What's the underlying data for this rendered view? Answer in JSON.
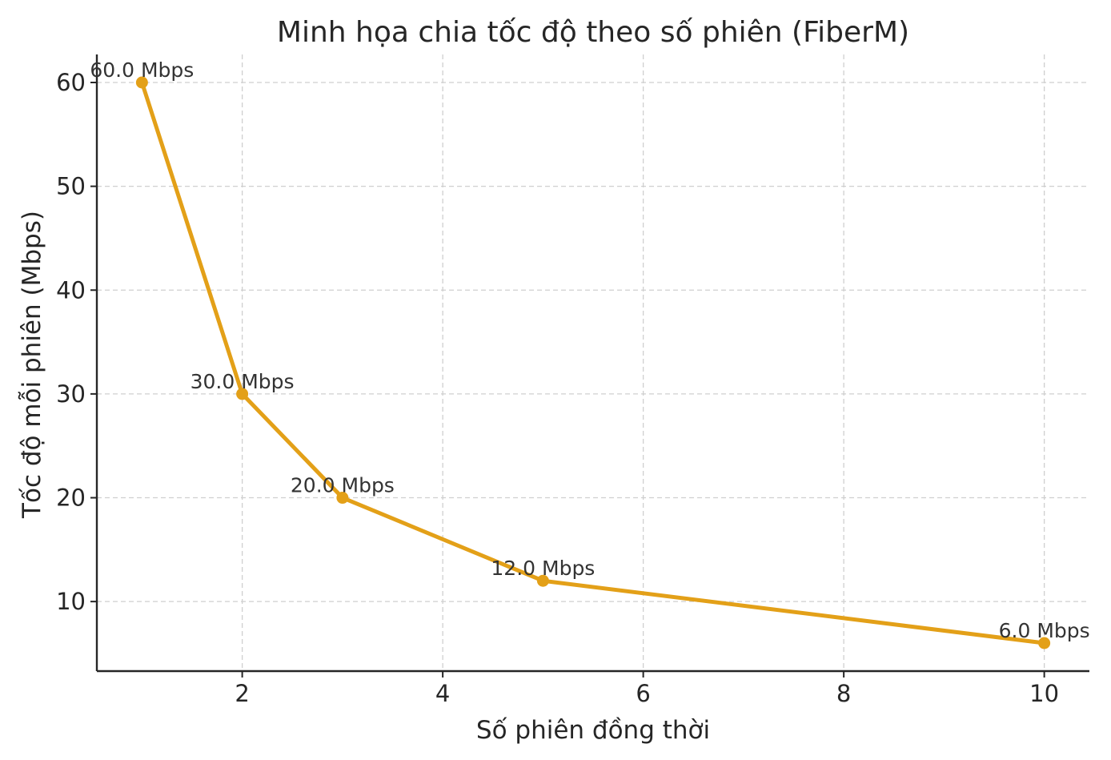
{
  "chart_data": {
    "type": "line",
    "title": "Minh họa chia tốc độ theo số phiên (FiberM)",
    "xlabel": "Số phiên đồng thời",
    "ylabel": "Tốc độ mỗi phiên (Mbps)",
    "x": [
      1,
      2,
      3,
      5,
      10
    ],
    "series": [
      {
        "values": [
          60,
          30,
          20,
          12,
          6
        ],
        "color": "#e3a018"
      }
    ],
    "data_labels": [
      "60.0 Mbps",
      "30.0 Mbps",
      "20.0 Mbps",
      "12.0 Mbps",
      "6.0 Mbps"
    ],
    "xlim": [
      0.55,
      10.45
    ],
    "ylim": [
      3.3,
      62.7
    ],
    "xticks": [
      2,
      4,
      6,
      8,
      10
    ],
    "xtick_labels": [
      "2",
      "4",
      "6",
      "8",
      "10"
    ],
    "yticks": [
      10,
      20,
      30,
      40,
      50,
      60
    ],
    "ytick_labels": [
      "10",
      "20",
      "30",
      "40",
      "50",
      "60"
    ],
    "grid": true,
    "legend": "none"
  }
}
